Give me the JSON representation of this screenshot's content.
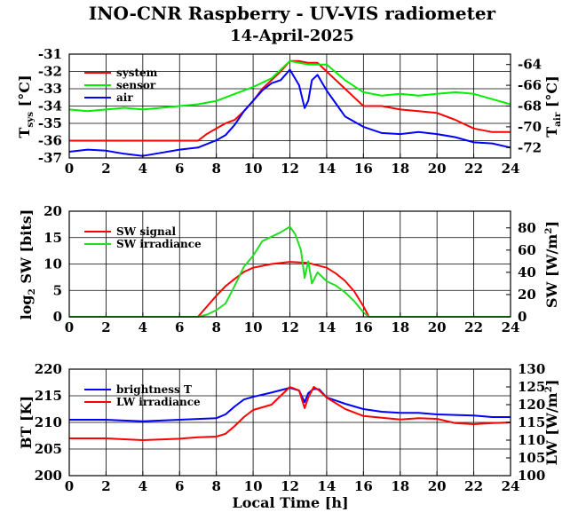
{
  "title": "INO-CNR Raspberry - UV-VIS radiometer",
  "subtitle": "14-April-2025",
  "colors": {
    "system": "#ff0000",
    "sensor": "#00ee00",
    "air": "#0000ff",
    "grid": "#000000"
  },
  "chart_data": [
    {
      "type": "line",
      "panel": "temperatures",
      "xlim": [
        0,
        24
      ],
      "xticks": [
        "0",
        "2",
        "4",
        "6",
        "8",
        "10",
        "12",
        "14",
        "16",
        "18",
        "20",
        "22",
        "24"
      ],
      "ylabel": "T_sys [°C]",
      "ylim": [
        -37,
        -31
      ],
      "yticks": [
        "-37",
        "-36",
        "-35",
        "-34",
        "-33",
        "-32",
        "-31"
      ],
      "y2label": "T_air [°C]",
      "y2lim": [
        -73,
        -63
      ],
      "y2ticks": [
        "-72",
        "-70",
        "-68",
        "-66",
        "-64"
      ],
      "legend_position": "top-left",
      "grid": true,
      "series": [
        {
          "name": "system",
          "axis": "left",
          "color": "#ff0000",
          "x": [
            0,
            1,
            2,
            3,
            4,
            5,
            6,
            7,
            7.5,
            8,
            8.5,
            9,
            9.5,
            10,
            10.5,
            11,
            11.5,
            12,
            12.5,
            13,
            13.5,
            14,
            14.5,
            15,
            15.5,
            16,
            17,
            18,
            19,
            20,
            21,
            22,
            23,
            24
          ],
          "y": [
            -36,
            -36,
            -36,
            -36,
            -36,
            -36,
            -36,
            -36,
            -35.6,
            -35.3,
            -35,
            -34.8,
            -34.3,
            -33.7,
            -33,
            -32.5,
            -32,
            -31.4,
            -31.4,
            -31.5,
            -31.5,
            -32,
            -32.5,
            -33,
            -33.5,
            -34,
            -34,
            -34.2,
            -34.3,
            -34.4,
            -34.8,
            -35.3,
            -35.5,
            -35.5
          ]
        },
        {
          "name": "sensor",
          "axis": "left",
          "color": "#00ee00",
          "x": [
            0,
            1,
            2,
            3,
            4,
            5,
            6,
            7,
            8,
            9,
            10,
            11,
            12,
            13,
            14,
            15,
            16,
            17,
            18,
            19,
            20,
            21,
            22,
            23,
            24
          ],
          "y": [
            -34.2,
            -34.3,
            -34.2,
            -34.1,
            -34.2,
            -34.1,
            -34,
            -33.9,
            -33.7,
            -33.3,
            -32.9,
            -32.4,
            -31.4,
            -31.6,
            -31.6,
            -32.5,
            -33.2,
            -33.4,
            -33.3,
            -33.4,
            -33.3,
            -33.2,
            -33.3,
            -33.6,
            -33.9
          ]
        },
        {
          "name": "air",
          "axis": "right",
          "color": "#0000ff",
          "x": [
            0,
            1,
            2,
            3,
            4,
            5,
            6,
            7,
            8,
            8.5,
            9,
            9.5,
            10,
            10.5,
            11,
            11.5,
            12,
            12.5,
            12.8,
            13,
            13.2,
            13.5,
            14,
            15,
            16,
            17,
            18,
            19,
            20,
            21,
            22,
            23,
            24
          ],
          "y": [
            -72.4,
            -72.2,
            -72.3,
            -72.6,
            -72.8,
            -72.5,
            -72.2,
            -72,
            -71.3,
            -70.8,
            -69.8,
            -68.5,
            -67.5,
            -66.5,
            -65.8,
            -65.5,
            -64.5,
            -66,
            -68.2,
            -67.5,
            -65.5,
            -65,
            -66.5,
            -69,
            -70,
            -70.6,
            -70.7,
            -70.5,
            -70.7,
            -71,
            -71.5,
            -71.6,
            -72
          ]
        }
      ]
    },
    {
      "type": "line",
      "panel": "shortwave",
      "xlim": [
        0,
        24
      ],
      "xticks": [
        "0",
        "2",
        "4",
        "6",
        "8",
        "10",
        "12",
        "14",
        "16",
        "18",
        "20",
        "22",
        "24"
      ],
      "ylabel": "log2 SW [bits]",
      "ylim": [
        0,
        20
      ],
      "yticks": [
        "0",
        "5",
        "10",
        "15",
        "20"
      ],
      "y2label": "SW [W/m2]",
      "y2lim": [
        0,
        95
      ],
      "y2ticks": [
        "0",
        "20",
        "40",
        "60",
        "80"
      ],
      "legend_position": "top-left",
      "grid": true,
      "series": [
        {
          "name": "SW signal",
          "axis": "left",
          "color": "#ff0000",
          "x": [
            7,
            7.5,
            8,
            8.5,
            9,
            9.5,
            10,
            11,
            12,
            13,
            14,
            14.5,
            15,
            15.5,
            16,
            16.3
          ],
          "y": [
            0,
            2,
            4,
            5.8,
            7.2,
            8.5,
            9.3,
            10,
            10.4,
            10.2,
            9.3,
            8.2,
            6.8,
            4.8,
            2,
            0
          ]
        },
        {
          "name": "SW irradiance",
          "axis": "right",
          "color": "#22dd22",
          "x": [
            0,
            7,
            7.5,
            8,
            8.5,
            9,
            9.5,
            10,
            10.5,
            11,
            11.5,
            12,
            12.3,
            12.6,
            12.8,
            13,
            13.2,
            13.5,
            14,
            14.5,
            15,
            15.5,
            16,
            16.3,
            24
          ],
          "y": [
            0,
            0,
            2,
            6,
            12,
            28,
            45,
            55,
            68,
            72,
            76,
            81,
            74,
            60,
            35,
            50,
            30,
            40,
            32,
            28,
            22,
            14,
            4,
            0,
            0
          ]
        }
      ]
    },
    {
      "type": "line",
      "panel": "longwave",
      "xlim": [
        0,
        24
      ],
      "xticks": [
        "0",
        "2",
        "4",
        "6",
        "8",
        "10",
        "12",
        "14",
        "16",
        "18",
        "20",
        "22",
        "24"
      ],
      "xlabel": "Local Time [h]",
      "ylabel": "BT [K]",
      "ylim": [
        200,
        220
      ],
      "yticks": [
        "200",
        "205",
        "210",
        "215",
        "220"
      ],
      "y2label": "LW [W/m2]",
      "y2lim": [
        100,
        130
      ],
      "y2ticks": [
        "100",
        "105",
        "110",
        "115",
        "120",
        "125",
        "130"
      ],
      "legend_position": "top-left",
      "grid": true,
      "series": [
        {
          "name": "brightness T",
          "axis": "left",
          "color": "#0000ff",
          "x": [
            0,
            2,
            4,
            6,
            8,
            8.5,
            9,
            9.5,
            10,
            11,
            12,
            12.5,
            12.8,
            13,
            13.3,
            13.6,
            14,
            15,
            16,
            17,
            18,
            19,
            20,
            21,
            22,
            23,
            24
          ],
          "y": [
            210.5,
            210.5,
            210.2,
            210.5,
            210.8,
            211.5,
            213,
            214.3,
            214.8,
            215.6,
            216.5,
            216,
            213.8,
            215.5,
            216.3,
            216.2,
            214.7,
            213.5,
            212.5,
            212,
            211.8,
            211.8,
            211.5,
            211.4,
            211.3,
            211,
            211
          ]
        },
        {
          "name": "LW irradiance",
          "axis": "right",
          "color": "#ff0000",
          "x": [
            0,
            2,
            4,
            6,
            7,
            8,
            8.5,
            9,
            9.5,
            10,
            11,
            12,
            12.5,
            12.8,
            13,
            13.3,
            13.6,
            14,
            15,
            16,
            17,
            18,
            19,
            20,
            21,
            22,
            23,
            24
          ],
          "y": [
            110.5,
            110.5,
            110,
            110.4,
            110.8,
            111,
            111.8,
            114,
            116.5,
            118.5,
            120,
            125,
            124,
            119,
            122,
            125,
            124,
            122,
            118.8,
            116.8,
            116.3,
            115.8,
            116.2,
            116,
            114.8,
            114.5,
            114.8,
            115
          ]
        }
      ]
    }
  ]
}
